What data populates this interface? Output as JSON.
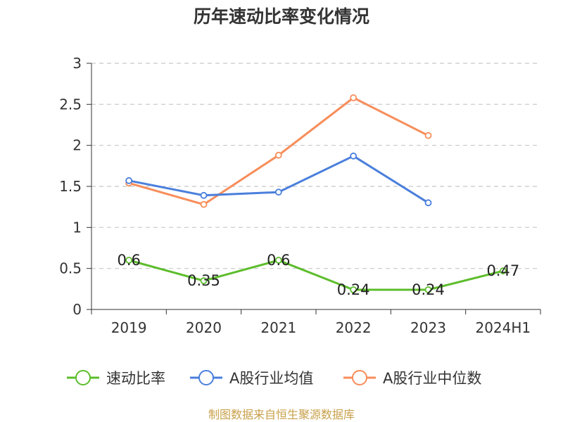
{
  "chart_data": {
    "type": "line",
    "title": "历年速动比率变化情况",
    "categories": [
      "2019",
      "2020",
      "2021",
      "2022",
      "2023",
      "2024H1"
    ],
    "ylim": [
      0,
      3
    ],
    "yticks": [
      0,
      0.5,
      1,
      1.5,
      2,
      2.5,
      3
    ],
    "ytick_labels": [
      "0",
      "0.5",
      "1",
      "1.5",
      "2",
      "2.5",
      "3"
    ],
    "grid": true,
    "legend_position": "bottom",
    "series": [
      {
        "name": "速动比率",
        "color": "#5cbd2b",
        "values": [
          0.6,
          0.35,
          0.6,
          0.24,
          0.24,
          0.47
        ],
        "labels": [
          "0.6",
          "0.35",
          "0.6",
          "0.24",
          "0.24",
          "0.47"
        ]
      },
      {
        "name": "A股行业均值",
        "color": "#4a7fdc",
        "values": [
          1.57,
          1.39,
          1.43,
          1.87,
          1.3,
          null
        ]
      },
      {
        "name": "A股行业中位数",
        "color": "#f78d5a",
        "values": [
          1.54,
          1.28,
          1.88,
          2.58,
          2.12,
          null
        ]
      }
    ],
    "source": "制图数据来自恒生聚源数据库"
  }
}
